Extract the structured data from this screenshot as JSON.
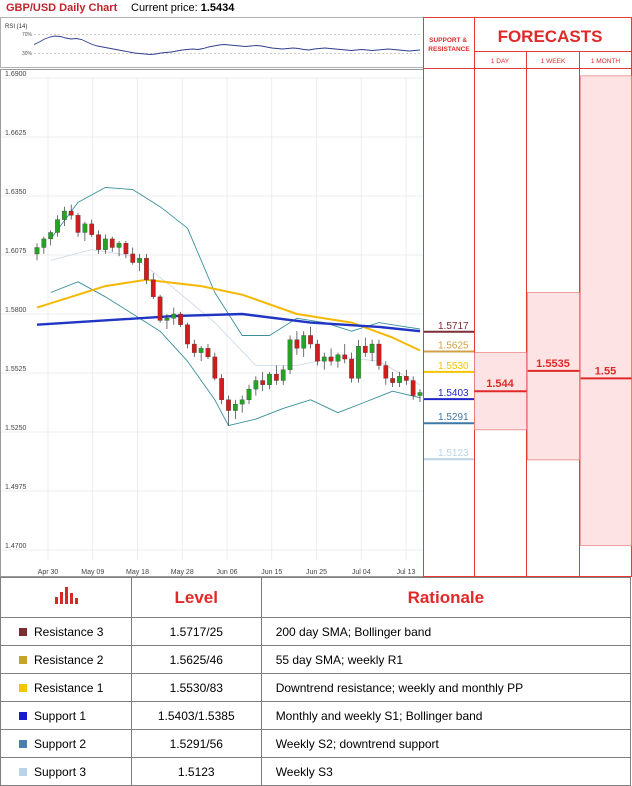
{
  "header": {
    "title": "GBP/USD Daily Chart",
    "price_label": "Current price:",
    "price_value": "1.5434"
  },
  "rsi": {
    "label": "RSI (14)",
    "levels": [
      "70%",
      "30%"
    ],
    "values": [
      55,
      60,
      66,
      70,
      72,
      71,
      68,
      66,
      67,
      65,
      60,
      55,
      52,
      50,
      48,
      46,
      44,
      42,
      40,
      38,
      37,
      36,
      35,
      36,
      38,
      39,
      40,
      42,
      44,
      45,
      46,
      45,
      47,
      50,
      52,
      54,
      55,
      54,
      53,
      52,
      51,
      52,
      53,
      52,
      50,
      48,
      47,
      46,
      47,
      48,
      47,
      45,
      44,
      46,
      47,
      48,
      47,
      46,
      45,
      44,
      43,
      44,
      45,
      44,
      43,
      44,
      45,
      46,
      45,
      44,
      43,
      42,
      43,
      44
    ]
  },
  "price_axis": {
    "ticks": [
      "1.6900",
      "1.6625",
      "1.6350",
      "1.6075",
      "1.5800",
      "1.5525",
      "1.5250",
      "1.4975",
      "1.4700"
    ]
  },
  "x_axis": {
    "ticks": [
      "Apr 30",
      "May 09",
      "May 18",
      "May 28",
      "Jun 06",
      "Jun 15",
      "Jun 25",
      "Jul 04",
      "Jul 13"
    ]
  },
  "levels_panel": {
    "header": "SUPPORT & RESISTANCE",
    "items": [
      {
        "value": "1.5717",
        "color": "#7b2d35"
      },
      {
        "value": "1.5625",
        "color": "#d1a046"
      },
      {
        "value": "1.5530",
        "color": "#f5c400"
      },
      {
        "value": "1.5403",
        "color": "#2025c8"
      },
      {
        "value": "1.5291",
        "color": "#3f78a7"
      },
      {
        "value": "1.5123",
        "color": "#b9d4e6"
      }
    ]
  },
  "forecasts": {
    "title": "FORECASTS",
    "columns": [
      {
        "label": "1 DAY",
        "value": "1.544"
      },
      {
        "label": "1 WEEK",
        "value": "1.5535"
      },
      {
        "label": "1 MONTH",
        "value": "1.55"
      }
    ]
  },
  "chart_data": {
    "type": "candlestick",
    "title": "GBP/USD Daily Chart",
    "ylim": [
      1.47,
      1.69
    ],
    "x_ticks": [
      "Apr 30",
      "May 09",
      "May 18",
      "May 28",
      "Jun 06",
      "Jun 15",
      "Jun 25",
      "Jul 04",
      "Jul 13"
    ],
    "candles": [
      [
        1.608,
        1.613,
        1.605,
        1.611
      ],
      [
        1.611,
        1.616,
        1.608,
        1.615
      ],
      [
        1.615,
        1.619,
        1.612,
        1.618
      ],
      [
        1.618,
        1.626,
        1.616,
        1.624
      ],
      [
        1.624,
        1.63,
        1.621,
        1.628
      ],
      [
        1.628,
        1.631,
        1.624,
        1.626
      ],
      [
        1.626,
        1.627,
        1.616,
        1.618
      ],
      [
        1.618,
        1.623,
        1.614,
        1.622
      ],
      [
        1.622,
        1.624,
        1.616,
        1.617
      ],
      [
        1.617,
        1.619,
        1.608,
        1.61
      ],
      [
        1.61,
        1.617,
        1.608,
        1.615
      ],
      [
        1.615,
        1.616,
        1.609,
        1.611
      ],
      [
        1.611,
        1.614,
        1.607,
        1.613
      ],
      [
        1.613,
        1.614,
        1.606,
        1.608
      ],
      [
        1.608,
        1.611,
        1.603,
        1.604
      ],
      [
        1.604,
        1.608,
        1.6,
        1.606
      ],
      [
        1.606,
        1.608,
        1.594,
        1.596
      ],
      [
        1.596,
        1.599,
        1.587,
        1.588
      ],
      [
        1.588,
        1.589,
        1.576,
        1.577
      ],
      [
        1.577,
        1.58,
        1.573,
        1.578
      ],
      [
        1.578,
        1.583,
        1.575,
        1.58
      ],
      [
        1.58,
        1.581,
        1.574,
        1.575
      ],
      [
        1.575,
        1.576,
        1.564,
        1.566
      ],
      [
        1.566,
        1.568,
        1.56,
        1.562
      ],
      [
        1.562,
        1.565,
        1.558,
        1.564
      ],
      [
        1.564,
        1.566,
        1.559,
        1.56
      ],
      [
        1.56,
        1.562,
        1.549,
        1.55
      ],
      [
        1.55,
        1.552,
        1.538,
        1.54
      ],
      [
        1.54,
        1.542,
        1.528,
        1.535
      ],
      [
        1.535,
        1.54,
        1.531,
        1.538
      ],
      [
        1.538,
        1.542,
        1.534,
        1.54
      ],
      [
        1.54,
        1.547,
        1.538,
        1.545
      ],
      [
        1.545,
        1.551,
        1.542,
        1.549
      ],
      [
        1.549,
        1.553,
        1.544,
        1.547
      ],
      [
        1.547,
        1.553,
        1.545,
        1.552
      ],
      [
        1.552,
        1.556,
        1.547,
        1.549
      ],
      [
        1.549,
        1.556,
        1.547,
        1.554
      ],
      [
        1.554,
        1.57,
        1.552,
        1.568
      ],
      [
        1.568,
        1.572,
        1.561,
        1.564
      ],
      [
        1.564,
        1.572,
        1.56,
        1.57
      ],
      [
        1.57,
        1.574,
        1.564,
        1.566
      ],
      [
        1.566,
        1.568,
        1.556,
        1.558
      ],
      [
        1.558,
        1.562,
        1.554,
        1.56
      ],
      [
        1.56,
        1.564,
        1.556,
        1.558
      ],
      [
        1.558,
        1.562,
        1.555,
        1.561
      ],
      [
        1.561,
        1.566,
        1.557,
        1.559
      ],
      [
        1.559,
        1.562,
        1.548,
        1.55
      ],
      [
        1.55,
        1.568,
        1.548,
        1.565
      ],
      [
        1.565,
        1.569,
        1.56,
        1.562
      ],
      [
        1.562,
        1.568,
        1.558,
        1.566
      ],
      [
        1.566,
        1.568,
        1.554,
        1.556
      ],
      [
        1.556,
        1.558,
        1.547,
        1.55
      ],
      [
        1.55,
        1.553,
        1.546,
        1.548
      ],
      [
        1.548,
        1.553,
        1.546,
        1.551
      ],
      [
        1.551,
        1.554,
        1.547,
        1.549
      ],
      [
        1.549,
        1.551,
        1.54,
        1.542
      ],
      [
        1.542,
        1.545,
        1.539,
        1.5434
      ]
    ],
    "sma200": [
      [
        0,
        1.575
      ],
      [
        20,
        1.579
      ],
      [
        30,
        1.58
      ],
      [
        40,
        1.576
      ],
      [
        50,
        1.574
      ],
      [
        56,
        1.572
      ]
    ],
    "sma55": [
      [
        0,
        1.583
      ],
      [
        10,
        1.593
      ],
      [
        16,
        1.596
      ],
      [
        24,
        1.593
      ],
      [
        30,
        1.589
      ],
      [
        38,
        1.58
      ],
      [
        46,
        1.576
      ],
      [
        52,
        1.569
      ],
      [
        56,
        1.563
      ]
    ],
    "sma_light": [
      [
        2,
        1.605
      ],
      [
        8,
        1.61
      ],
      [
        14,
        1.607
      ],
      [
        20,
        1.592
      ],
      [
        26,
        1.576
      ],
      [
        32,
        1.556
      ],
      [
        38,
        1.556
      ],
      [
        44,
        1.56
      ],
      [
        50,
        1.558
      ],
      [
        56,
        1.547
      ]
    ],
    "bollinger_upper": [
      [
        2,
        1.615
      ],
      [
        6,
        1.632
      ],
      [
        10,
        1.639
      ],
      [
        14,
        1.638
      ],
      [
        18,
        1.63
      ],
      [
        22,
        1.62
      ],
      [
        26,
        1.59
      ],
      [
        30,
        1.57
      ],
      [
        34,
        1.57
      ],
      [
        38,
        1.578
      ],
      [
        42,
        1.576
      ],
      [
        46,
        1.572
      ],
      [
        50,
        1.576
      ],
      [
        54,
        1.574
      ],
      [
        56,
        1.573
      ]
    ],
    "bollinger_lower": [
      [
        2,
        1.59
      ],
      [
        6,
        1.595
      ],
      [
        10,
        1.588
      ],
      [
        14,
        1.58
      ],
      [
        18,
        1.572
      ],
      [
        22,
        1.558
      ],
      [
        26,
        1.54
      ],
      [
        28,
        1.528
      ],
      [
        32,
        1.531
      ],
      [
        36,
        1.536
      ],
      [
        40,
        1.54
      ],
      [
        44,
        1.534
      ],
      [
        48,
        1.539
      ],
      [
        52,
        1.544
      ],
      [
        56,
        1.541
      ]
    ]
  },
  "table": {
    "headers": [
      "Level",
      "Rationale"
    ],
    "rows": [
      {
        "name": "Resistance 3",
        "level": "1.5717/25",
        "rationale": "200 day SMA; Bollinger band",
        "color": "#7b2d35"
      },
      {
        "name": "Resistance 2",
        "level": "1.5625/46",
        "rationale": "55 day SMA; weekly R1",
        "color": "#c9a22a"
      },
      {
        "name": "Resistance 1",
        "level": "1.5530/83",
        "rationale": "Downtrend resistance; weekly and monthly PP",
        "color": "#f5c400"
      },
      {
        "name": "Support 1",
        "level": "1.5403/1.5385",
        "rationale": "Monthly and weekly S1; Bollinger band",
        "color": "#1a1ad0"
      },
      {
        "name": "Support 2",
        "level": "1.5291/56",
        "rationale": "Weekly S2; downtrend support",
        "color": "#4a7fb0"
      },
      {
        "name": "Support 3",
        "level": "1.5123",
        "rationale": "Weekly S3",
        "color": "#b9d4e6"
      }
    ]
  }
}
